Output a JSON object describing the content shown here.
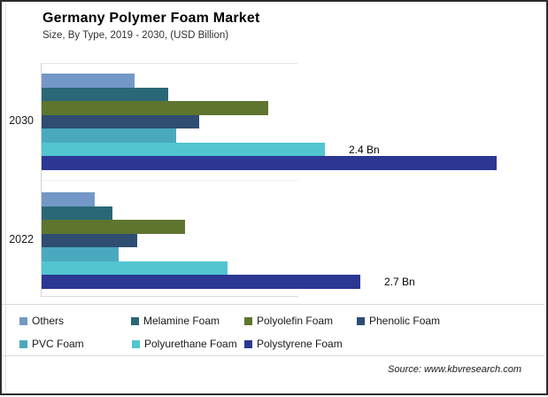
{
  "header": {
    "title": "Germany Polymer Foam Market",
    "subtitle": "Size, By Type, 2019 - 2030, (USD Billion)"
  },
  "footer": {
    "source": "Source: www.kbvresearch.com"
  },
  "chart_data": {
    "type": "bar",
    "orientation": "horizontal",
    "unit": "USD Billion",
    "title": "Germany Polymer Foam Market",
    "subtitle": "Size, By Type, 2019 - 2030, (USD Billion)",
    "categories": [
      "2030",
      "2022"
    ],
    "series": [
      {
        "name": "Others",
        "color": "#7398C8",
        "values": [
          0.79,
          0.45
        ]
      },
      {
        "name": "Melamine Foam",
        "color": "#2A6877",
        "values": [
          1.07,
          0.6
        ]
      },
      {
        "name": "Polyolefin Foam",
        "color": "#5D752F",
        "values": [
          1.92,
          1.21
        ]
      },
      {
        "name": "Phenolic Foam",
        "color": "#2E4D71",
        "values": [
          1.33,
          0.81
        ]
      },
      {
        "name": "PVC Foam",
        "color": "#4AA9BE",
        "values": [
          1.14,
          0.65
        ]
      },
      {
        "name": "Polyurethane Foam",
        "color": "#52C5D0",
        "values": [
          2.4,
          1.57
        ]
      },
      {
        "name": "Polystyrene Foam",
        "color": "#2B3792",
        "values": [
          3.85,
          2.7
        ]
      }
    ],
    "annotations": [
      {
        "category": "2030",
        "series": "Polyurethane Foam",
        "label": "2.4 Bn"
      },
      {
        "category": "2022",
        "series": "Polystyrene Foam",
        "label": "2.7 Bn"
      }
    ],
    "xlim": [
      0,
      4.3
    ],
    "grid": false,
    "legend_position": "bottom"
  }
}
